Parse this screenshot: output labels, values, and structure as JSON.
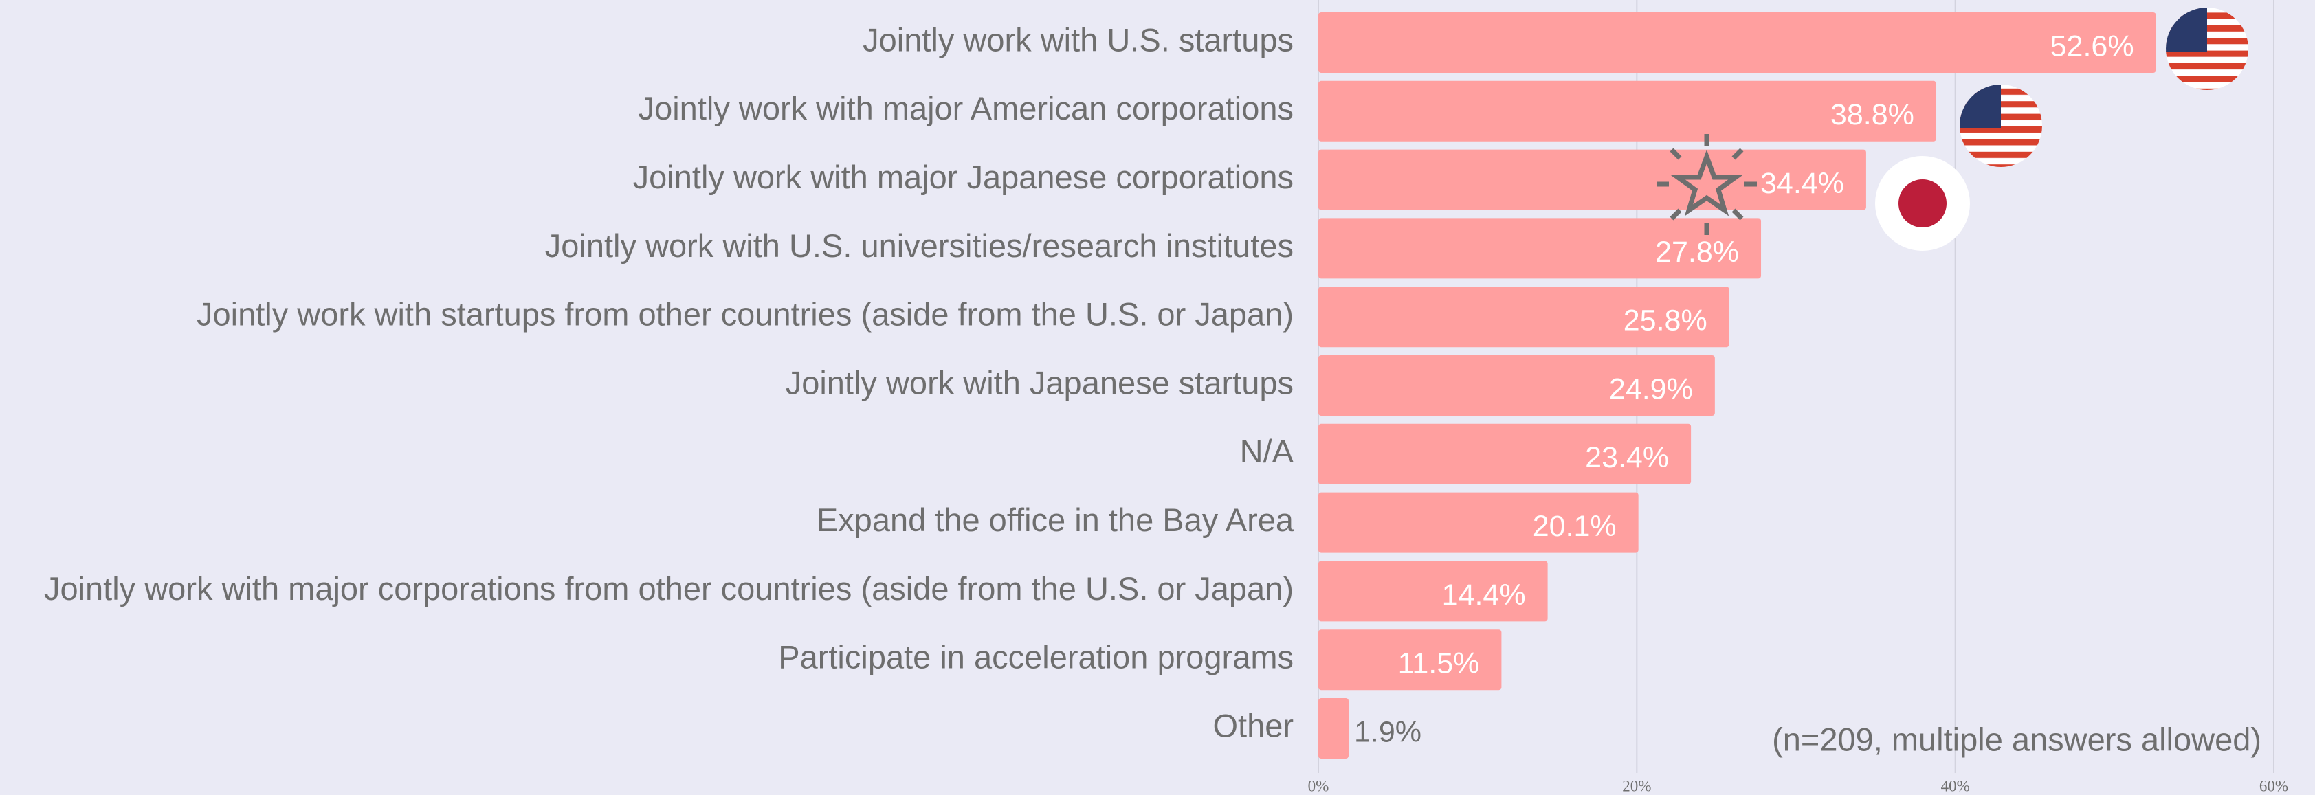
{
  "chart_data": {
    "type": "bar",
    "orientation": "horizontal",
    "categories": [
      "Jointly work with U.S. startups",
      "Jointly work with major American corporations",
      "Jointly work with major Japanese corporations",
      "Jointly work with U.S. universities/research institutes",
      "Jointly work with startups from other countries (aside from the U.S. or Japan)",
      "Jointly work with Japanese startups",
      "N/A",
      "Expand the office in the Bay Area",
      "Jointly work with major corporations from other countries (aside from the U.S. or Japan)",
      "Participate in acceleration programs",
      "Other"
    ],
    "values": [
      52.6,
      38.8,
      34.4,
      27.8,
      25.8,
      24.9,
      23.4,
      20.1,
      14.4,
      11.5,
      1.9
    ],
    "value_labels": [
      "52.6%",
      "38.8%",
      "34.4%",
      "27.8%",
      "25.8%",
      "24.9%",
      "23.4%",
      "20.1%",
      "14.4%",
      "11.5%",
      "1.9%"
    ],
    "color": "#ff9f9f",
    "xlim": [
      0,
      60
    ],
    "xticks": [
      {
        "value": 0,
        "label": "0%"
      },
      {
        "value": 20,
        "label": "20%"
      },
      {
        "value": 40,
        "label": "40%"
      },
      {
        "value": 60,
        "label": "60%"
      }
    ],
    "grid": true,
    "annotation": "(n=209, multiple answers allowed)"
  }
}
